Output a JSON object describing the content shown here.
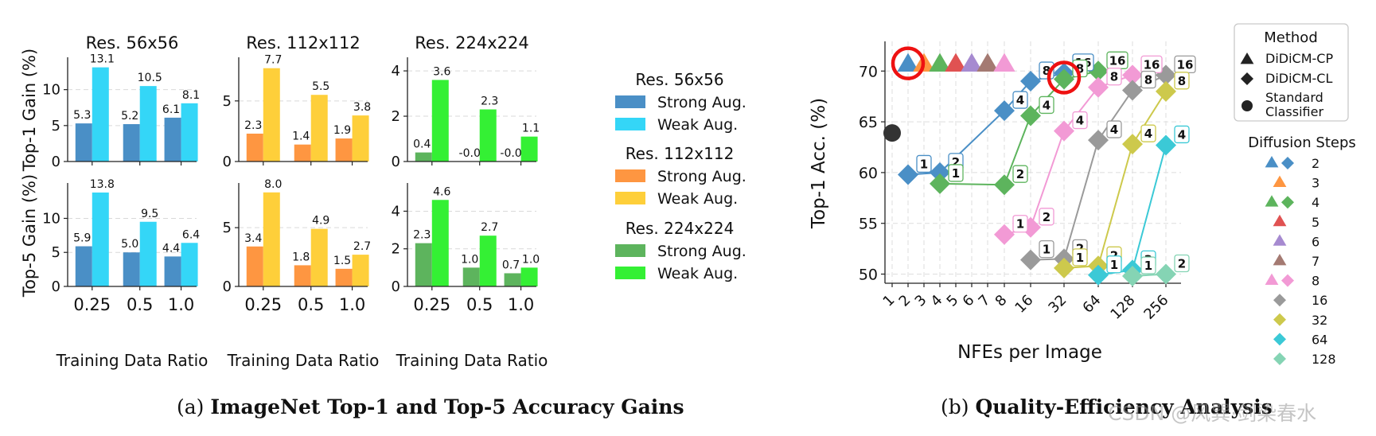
{
  "colors": {
    "strong56": "#4a8fc6",
    "weak56": "#34d6f7",
    "strong112": "#fe9641",
    "weak112": "#fecf3a",
    "strong224": "#5db45d",
    "weak224": "#34f034",
    "s2": "#4a8fc6",
    "s3": "#fe9641",
    "s4": "#5db45d",
    "s5": "#e05252",
    "s6": "#a68ad0",
    "s7": "#a47a72",
    "s8": "#f29ad5",
    "s16": "#9a9a9a",
    "s32": "#cdc94c",
    "s64": "#3bc9d6",
    "s128": "#85d4b4",
    "std": "#333333",
    "highlight": "#ee1111"
  },
  "captions": {
    "a_prefix": "(a) ",
    "a_bold": "ImageNet Top-1 and Top-5 Accuracy Gains",
    "b_prefix": "(b) ",
    "b_bold": "Quality-Efficiency Analysis"
  },
  "watermark": "CSDN @风巽·剑染春水",
  "chart_data": [
    {
      "type": "bar",
      "panel": "gains",
      "row_ylabels": [
        "Top-1 Gain (%)",
        "Top-5 Gain (%)"
      ],
      "xlabel": "Training Data Ratio",
      "categories": [
        "0.25",
        "0.5",
        "1.0"
      ],
      "columns": [
        {
          "title": "Res. 56x56",
          "top1": {
            "ylim": [
              0,
              14.5
            ],
            "yticks": [
              "0",
              "5",
              "10"
            ],
            "strong": [
              5.3,
              5.2,
              6.1
            ],
            "weak": [
              13.1,
              10.5,
              8.1
            ],
            "strong_labels": [
              "5.3",
              "5.2",
              "6.1"
            ],
            "weak_labels": [
              "13.1",
              "10.5",
              "8.1"
            ]
          },
          "top5": {
            "ylim": [
              0,
              15.2
            ],
            "yticks": [
              "0",
              "5",
              "10"
            ],
            "strong": [
              5.9,
              5.0,
              4.4
            ],
            "weak": [
              13.8,
              9.5,
              6.4
            ],
            "strong_labels": [
              "5.9",
              "5.0",
              "4.4"
            ],
            "weak_labels": [
              "13.8",
              "9.5",
              "6.4"
            ]
          }
        },
        {
          "title": "Res. 112x112",
          "top1": {
            "ylim": [
              0,
              8.6
            ],
            "yticks": [
              "0",
              "5"
            ],
            "strong": [
              2.3,
              1.4,
              1.9
            ],
            "weak": [
              7.7,
              5.5,
              3.8
            ],
            "strong_labels": [
              "2.3",
              "1.4",
              "1.9"
            ],
            "weak_labels": [
              "7.7",
              "5.5",
              "3.8"
            ]
          },
          "top5": {
            "ylim": [
              0,
              8.8
            ],
            "yticks": [
              "0",
              "5"
            ],
            "strong": [
              3.4,
              1.8,
              1.5
            ],
            "weak": [
              8.0,
              4.9,
              2.7
            ],
            "strong_labels": [
              "3.4",
              "1.8",
              "1.5"
            ],
            "weak_labels": [
              "8.0",
              "4.9",
              "2.7"
            ]
          }
        },
        {
          "title": "Res. 224x224",
          "top1": {
            "ylim": [
              0,
              4.6
            ],
            "yticks": [
              "0",
              "2",
              "4"
            ],
            "strong": [
              0.4,
              0.0,
              0.0
            ],
            "weak": [
              3.6,
              2.3,
              1.1
            ],
            "strong_labels": [
              "0.4",
              "-0.0",
              "-0.0"
            ],
            "weak_labels": [
              "3.6",
              "2.3",
              "1.1"
            ]
          },
          "top5": {
            "ylim": [
              0,
              5.5
            ],
            "yticks": [
              "0",
              "2",
              "4"
            ],
            "strong": [
              2.3,
              1.0,
              0.7
            ],
            "weak": [
              4.6,
              2.7,
              1.0
            ],
            "strong_labels": [
              "2.3",
              "1.0",
              "0.7"
            ],
            "weak_labels": [
              "4.6",
              "2.7",
              "1.0"
            ]
          }
        }
      ],
      "legend": {
        "placement": "right",
        "groups": [
          {
            "title": "Res. 56x56",
            "items": [
              {
                "label": "Strong Aug.",
                "color": "strong56"
              },
              {
                "label": "Weak Aug.",
                "color": "weak56"
              }
            ]
          },
          {
            "title": "Res. 112x112",
            "items": [
              {
                "label": "Strong Aug.",
                "color": "strong112"
              },
              {
                "label": "Weak Aug.",
                "color": "weak112"
              }
            ]
          },
          {
            "title": "Res. 224x224",
            "items": [
              {
                "label": "Strong Aug.",
                "color": "strong224"
              },
              {
                "label": "Weak Aug.",
                "color": "weak224"
              }
            ]
          }
        ]
      }
    },
    {
      "type": "scatter",
      "panel": "quality-efficiency",
      "ylabel": "Top-1 Acc. (%)",
      "xlabel": "NFEs per Image",
      "xticks": [
        "1",
        "2",
        "3",
        "4",
        "5",
        "6",
        "7",
        "8",
        "16",
        "32",
        "64",
        "128",
        "256"
      ],
      "ylim": [
        48.5,
        72.5
      ],
      "yticks": [
        50,
        55,
        60,
        65,
        70
      ],
      "grid": true,
      "standard_classifier": {
        "x": "1",
        "y": 63.9
      },
      "cp_points": [
        {
          "steps": 2,
          "x": "2",
          "y": 70.6,
          "highlight": true
        },
        {
          "steps": 3,
          "x": "3",
          "y": 70.6
        },
        {
          "steps": 4,
          "x": "4",
          "y": 70.6
        },
        {
          "steps": 5,
          "x": "5",
          "y": 70.6
        },
        {
          "steps": 6,
          "x": "6",
          "y": 70.6
        },
        {
          "steps": 7,
          "x": "7",
          "y": 70.6
        },
        {
          "steps": 8,
          "x": "8",
          "y": 70.6
        }
      ],
      "cl_series": [
        {
          "steps": 2,
          "points": [
            {
              "x": "2",
              "y": 59.8,
              "label": "1"
            },
            {
              "x": "4",
              "y": 60.0,
              "label": "2"
            },
            {
              "x": "8",
              "y": 66.1,
              "label": "4"
            },
            {
              "x": "16",
              "y": 69.0,
              "label": "8"
            },
            {
              "x": "32",
              "y": 69.8,
              "label": "16"
            }
          ]
        },
        {
          "steps": 4,
          "points": [
            {
              "x": "4",
              "y": 58.9,
              "label": "1"
            },
            {
              "x": "8",
              "y": 58.8,
              "label": "2"
            },
            {
              "x": "16",
              "y": 65.6,
              "label": "4"
            },
            {
              "x": "32",
              "y": 69.2,
              "label": "8",
              "highlight": true
            },
            {
              "x": "64",
              "y": 70.0,
              "label": "16"
            }
          ]
        },
        {
          "steps": 8,
          "points": [
            {
              "x": "8",
              "y": 53.9,
              "label": "1"
            },
            {
              "x": "16",
              "y": 54.6,
              "label": "2"
            },
            {
              "x": "32",
              "y": 64.1,
              "label": "4"
            },
            {
              "x": "64",
              "y": 68.4,
              "label": "8"
            },
            {
              "x": "128",
              "y": 69.6,
              "label": "16"
            }
          ]
        },
        {
          "steps": 16,
          "points": [
            {
              "x": "16",
              "y": 51.4,
              "label": "1"
            },
            {
              "x": "32",
              "y": 51.5,
              "label": "2"
            },
            {
              "x": "64",
              "y": 63.2,
              "label": "4"
            },
            {
              "x": "128",
              "y": 68.1,
              "label": "8"
            },
            {
              "x": "256",
              "y": 69.6,
              "label": "16"
            }
          ]
        },
        {
          "steps": 32,
          "points": [
            {
              "x": "32",
              "y": 50.6,
              "label": "1"
            },
            {
              "x": "64",
              "y": 50.8,
              "label": "2"
            },
            {
              "x": "128",
              "y": 62.8,
              "label": "4"
            },
            {
              "x": "256",
              "y": 68.0,
              "label": "8"
            }
          ]
        },
        {
          "steps": 64,
          "points": [
            {
              "x": "64",
              "y": 49.9,
              "label": "1"
            },
            {
              "x": "128",
              "y": 50.4,
              "label": "2"
            },
            {
              "x": "256",
              "y": 62.7,
              "label": "4"
            }
          ]
        },
        {
          "steps": 128,
          "points": [
            {
              "x": "128",
              "y": 49.8,
              "label": "1"
            },
            {
              "x": "256",
              "y": 50.0,
              "label": "2"
            }
          ]
        }
      ],
      "legend": {
        "placement": "right",
        "method_title": "Method",
        "methods": [
          {
            "label": "DiDiCM-CP",
            "marker": "triangle"
          },
          {
            "label": "DiDiCM-CL",
            "marker": "diamond"
          },
          {
            "label": "Standard Classifier",
            "marker": "circle",
            "lines": [
              "Standard",
              "Classifier"
            ]
          }
        ],
        "steps_title": "Diffusion Steps",
        "steps": [
          {
            "label": "2",
            "color": "s2",
            "markers": [
              "triangle",
              "diamond"
            ]
          },
          {
            "label": "3",
            "color": "s3",
            "markers": [
              "triangle"
            ]
          },
          {
            "label": "4",
            "color": "s4",
            "markers": [
              "triangle",
              "diamond"
            ]
          },
          {
            "label": "5",
            "color": "s5",
            "markers": [
              "triangle"
            ]
          },
          {
            "label": "6",
            "color": "s6",
            "markers": [
              "triangle"
            ]
          },
          {
            "label": "7",
            "color": "s7",
            "markers": [
              "triangle"
            ]
          },
          {
            "label": "8",
            "color": "s8",
            "markers": [
              "triangle",
              "diamond"
            ]
          },
          {
            "label": "16",
            "color": "s16",
            "markers": [
              "diamond"
            ]
          },
          {
            "label": "32",
            "color": "s32",
            "markers": [
              "diamond"
            ]
          },
          {
            "label": "64",
            "color": "s64",
            "markers": [
              "diamond"
            ]
          },
          {
            "label": "128",
            "color": "s128",
            "markers": [
              "diamond"
            ]
          }
        ]
      }
    }
  ]
}
